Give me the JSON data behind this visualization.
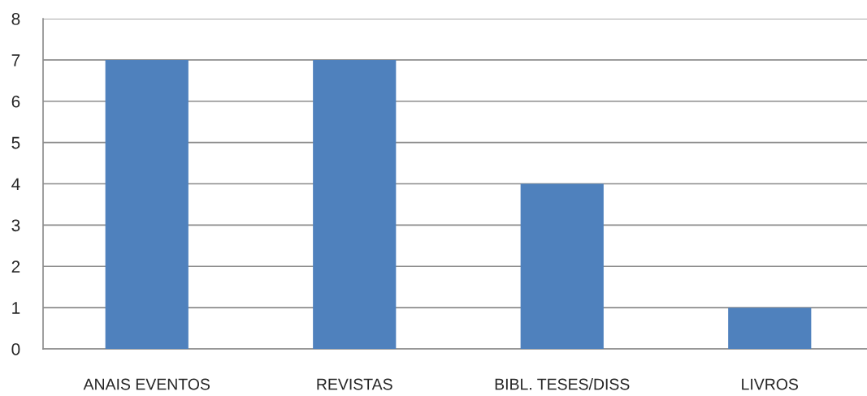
{
  "chart_data": {
    "type": "bar",
    "categories": [
      "ANAIS EVENTOS",
      "REVISTAS",
      "BIBL. TESES/DISS",
      "LIVROS"
    ],
    "values": [
      7,
      7,
      4,
      1
    ],
    "color": "#4f81bd",
    "ylim": [
      0,
      8
    ],
    "yticks": [
      0,
      1,
      2,
      3,
      4,
      5,
      6,
      7,
      8
    ],
    "grid": "y",
    "legend": false
  }
}
